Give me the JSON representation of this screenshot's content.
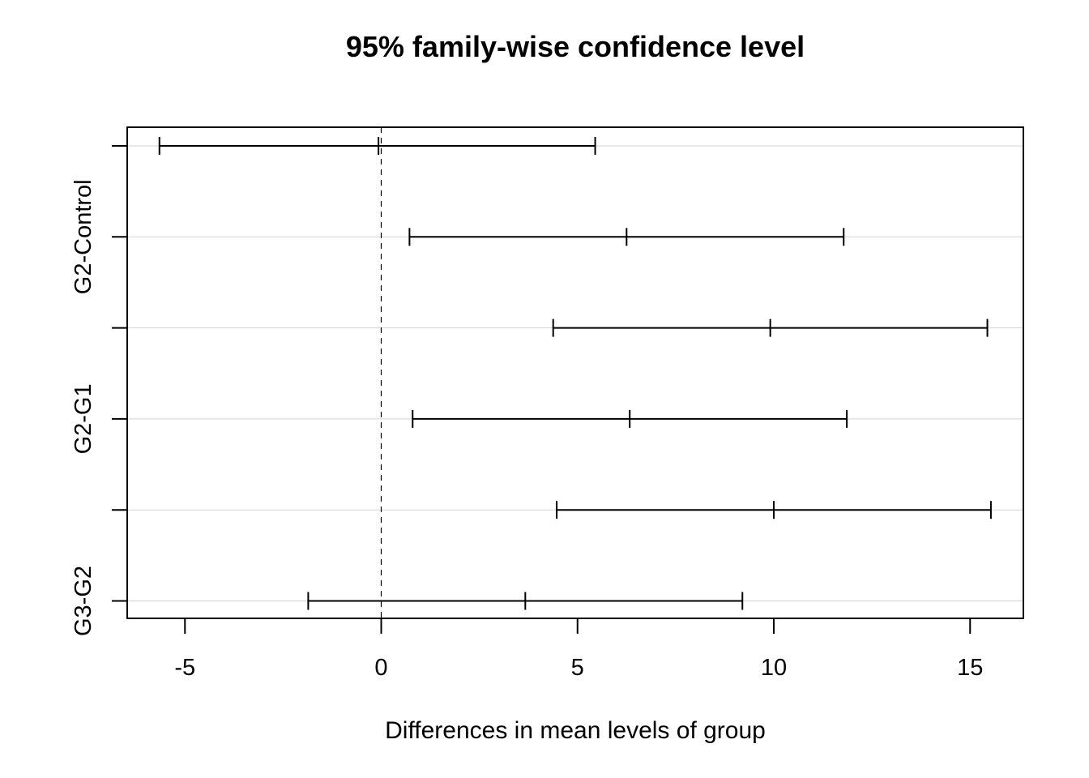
{
  "chart_data": {
    "type": "interval",
    "title": "95% family-wise confidence level",
    "xlabel": "Differences in mean levels of group",
    "ylabel": "",
    "xlim": [
      -6.5,
      16.3
    ],
    "x_ticks": [
      -5,
      0,
      5,
      10,
      15
    ],
    "reference_line": {
      "x": 0,
      "style": "dashed"
    },
    "grid": "horizontal",
    "comparisons": [
      {
        "label": "",
        "lwr": -5.65,
        "diff": -0.07,
        "upr": 5.45
      },
      {
        "label": "G2-Control",
        "lwr": 0.72,
        "diff": 6.25,
        "upr": 11.78
      },
      {
        "label": "",
        "lwr": 4.38,
        "diff": 9.91,
        "upr": 15.44
      },
      {
        "label": "G2-G1",
        "lwr": 0.8,
        "diff": 6.33,
        "upr": 11.86
      },
      {
        "label": "",
        "lwr": 4.47,
        "diff": 10.0,
        "upr": 15.53
      },
      {
        "label": "G3-G2",
        "lwr": -1.86,
        "diff": 3.67,
        "upr": 9.2
      }
    ],
    "colors": {
      "interval": "#000000",
      "grid": "#d3d3d3",
      "frame": "#000000"
    }
  }
}
